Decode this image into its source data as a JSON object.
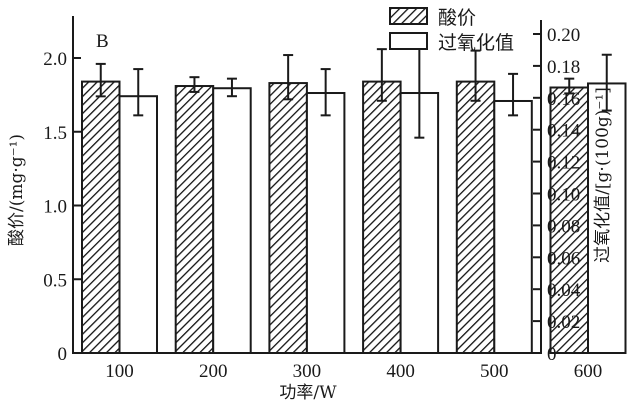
{
  "chart_data": {
    "type": "bar",
    "panel_label": "B",
    "title": "",
    "xlabel": "功率/W",
    "ylabel": "酸价/(mg·g⁻¹)",
    "ylabel_right": "过氧化值/[g·(100g)⁻¹]",
    "categories": [
      "100",
      "200",
      "300",
      "400",
      "500",
      "600"
    ],
    "ylim": [
      0,
      2.17
    ],
    "ylim_right": [
      0,
      0.2
    ],
    "yticks": [
      "0",
      "0.5",
      "1.0",
      "1.5",
      "2.0"
    ],
    "yticks_right": [
      "0",
      "0.02",
      "0.04",
      "0.06",
      "0.08",
      "0.10",
      "0.12",
      "0.14",
      "0.16",
      "0.18",
      "0.20"
    ],
    "grid": false,
    "legend_position": "top-right",
    "series": [
      {
        "name": "酸价",
        "axis": "left",
        "pattern": "hatched",
        "values": [
          1.84,
          1.81,
          1.83,
          1.84,
          1.84,
          1.8
        ],
        "error_low": [
          1.74,
          1.77,
          1.72,
          1.71,
          1.71,
          1.76
        ],
        "error_high": [
          1.96,
          1.87,
          2.02,
          2.06,
          2.05,
          1.86
        ]
      },
      {
        "name": "过氧化值",
        "axis": "right",
        "pattern": "open",
        "values": [
          0.161,
          0.166,
          0.163,
          0.163,
          0.158,
          0.169
        ],
        "error_low": [
          0.149,
          0.161,
          0.149,
          0.135,
          0.149,
          0.152
        ],
        "error_high": [
          0.178,
          0.172,
          0.178,
          0.192,
          0.175,
          0.187
        ]
      }
    ]
  },
  "legend": {
    "items": [
      {
        "label": "酸价",
        "pattern": "hatched"
      },
      {
        "label": "过氧化值",
        "pattern": "open"
      }
    ]
  },
  "axes": {
    "left_title": "酸价/(mg·g⁻¹)",
    "right_title": "过氧化值/[g·(100g)⁻¹]",
    "x_title": "功率/W"
  },
  "colors": {
    "ink": "#1a1a1a",
    "background": "#ffffff"
  }
}
